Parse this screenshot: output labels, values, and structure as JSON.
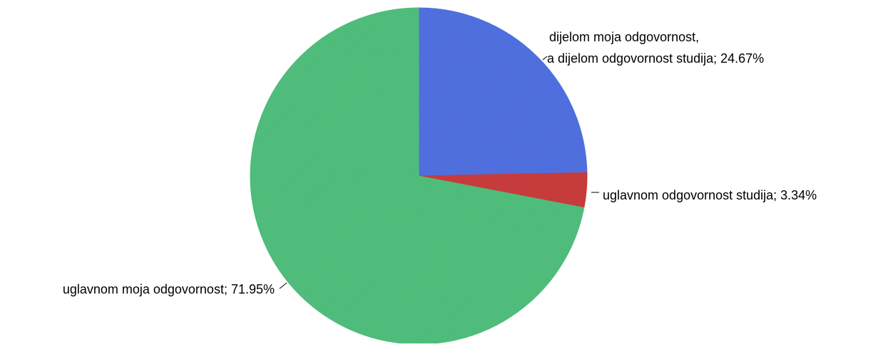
{
  "chart_data": {
    "type": "pie",
    "title": "",
    "slices": [
      {
        "label_lines": [
          "dijelom moja odgovornost,",
          " a dijelom odgovornost studija; 24.67%"
        ],
        "category": "dijelom moja odgovornost, a dijelom odgovornost studija",
        "value": 24.67,
        "color": "#5070E0"
      },
      {
        "label_lines": [
          "uglavnom odgovornost studija; 3.34%"
        ],
        "category": "uglavnom odgovornost studija",
        "value": 3.34,
        "color": "#C83C3C"
      },
      {
        "label_lines": [
          "uglavnom moja odgovornost; 71.95%"
        ],
        "category": "uglavnom moja odgovornost",
        "value": 71.95,
        "color": "#50BE7C"
      }
    ],
    "start": "12 o'clock",
    "direction": "clockwise",
    "legend": "none",
    "labels": "outside with leader lines"
  }
}
